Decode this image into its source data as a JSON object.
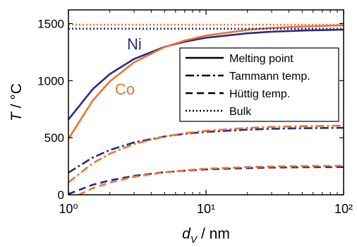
{
  "chart_data": {
    "type": "line",
    "x_label": {
      "symbol": "d",
      "subscript": "V",
      "unit": " / nm"
    },
    "y_label": {
      "symbol": "T",
      "unit": " / °C"
    },
    "xscale": "log",
    "xlim": [
      1,
      100
    ],
    "xticks": [
      {
        "value": 1,
        "label": "10⁰"
      },
      {
        "value": 10,
        "label": "10¹"
      },
      {
        "value": 100,
        "label": "10²"
      }
    ],
    "ylim": [
      0,
      1620
    ],
    "yticks": [
      0,
      500,
      1000,
      1500
    ],
    "x": [
      1,
      1.5,
      2,
      3,
      5,
      7,
      10,
      20,
      30,
      50,
      100
    ],
    "legend_position": "right",
    "legend": [
      {
        "label": "Melting point",
        "dash": "solid"
      },
      {
        "label": "Tammann temp.",
        "dash": "dashdot"
      },
      {
        "label": "Hüttig temp.",
        "dash": "dashed"
      },
      {
        "label": "Bulk",
        "dash": "dotted"
      }
    ],
    "series": [
      {
        "name": "Ni",
        "color": "#2b2a84",
        "legend_index": 0,
        "values": [
          660,
          925,
          1058,
          1190,
          1296,
          1341,
          1376,
          1415,
          1429,
          1439,
          1447
        ]
      },
      {
        "name": "Co",
        "color": "#ea7430",
        "legend_index": 0,
        "values": [
          490,
          825,
          993,
          1160,
          1294,
          1351,
          1395,
          1445,
          1462,
          1475,
          1485
        ]
      },
      {
        "color": "#2b2a84",
        "legend_index": 1,
        "values": [
          194,
          326,
          392,
          458,
          511,
          534,
          551,
          571,
          578,
          583,
          587
        ]
      },
      {
        "color": "#ea7430",
        "legend_index": 1,
        "values": [
          109,
          276,
          360,
          444,
          511,
          539,
          561,
          586,
          595,
          601,
          606
        ]
      },
      {
        "color": "#2b2a84",
        "legend_index": 2,
        "values": [
          7,
          87,
          126,
          166,
          198,
          211,
          222,
          234,
          238,
          241,
          243
        ]
      },
      {
        "color": "#ea7430",
        "legend_index": 2,
        "values": [
          -44,
          57,
          107,
          157,
          197,
          214,
          228,
          243,
          248,
          252,
          255
        ]
      },
      {
        "color": "#2b2a84",
        "legend_index": 3,
        "values": [
          1455,
          1455,
          1455,
          1455,
          1455,
          1455,
          1455,
          1455,
          1455,
          1455,
          1455
        ]
      },
      {
        "color": "#ea7430",
        "legend_index": 3,
        "values": [
          1490,
          1490,
          1490,
          1490,
          1490,
          1490,
          1490,
          1490,
          1490,
          1490,
          1490
        ]
      }
    ]
  }
}
